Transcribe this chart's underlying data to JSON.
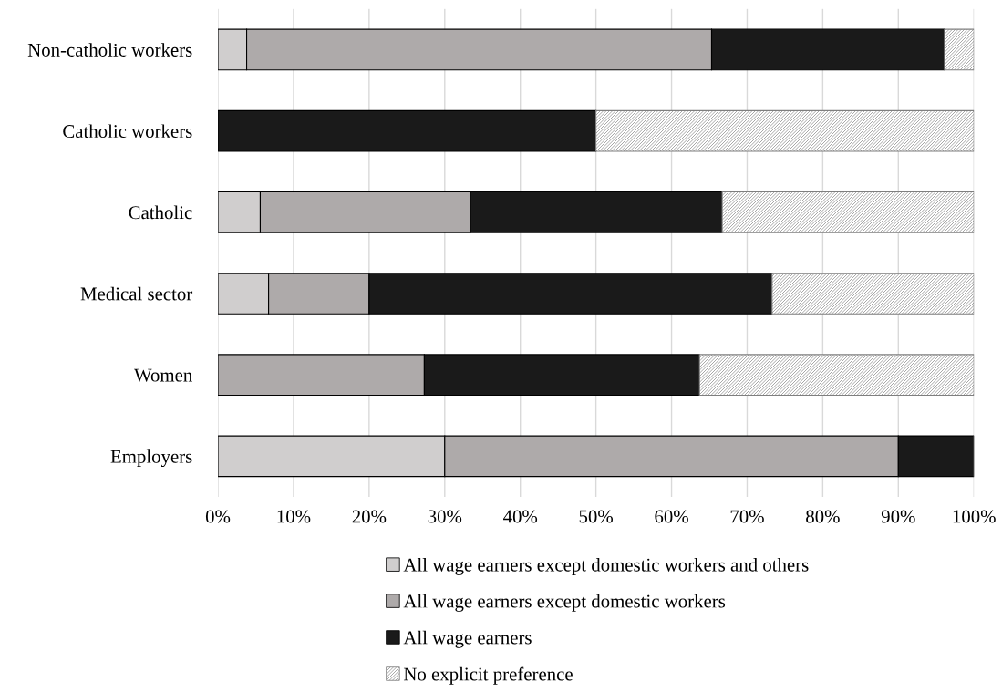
{
  "chart_data": {
    "type": "bar",
    "orientation": "horizontal",
    "stacked": true,
    "categories": [
      "Non-catholic workers",
      "Catholic workers",
      "Catholic",
      "Medical sector",
      "Women",
      "Employers"
    ],
    "series": [
      {
        "name": "All wage earners except domestic workers and others",
        "color": "#d0cece",
        "values": [
          3.8,
          0,
          5.6,
          6.7,
          0,
          30
        ]
      },
      {
        "name": "All wage earners except domestic workers",
        "color": "#aeaaaa",
        "values": [
          61.5,
          0,
          27.8,
          13.3,
          27.3,
          60
        ]
      },
      {
        "name": "All wage earners",
        "color": "#1a1a1a",
        "values": [
          30.8,
          50,
          33.3,
          53.3,
          36.4,
          10
        ]
      },
      {
        "name": "No explicit preference",
        "color": "#7f7f7f",
        "values": [
          3.9,
          50,
          33.3,
          26.7,
          36.3,
          0
        ]
      }
    ],
    "xlim": [
      0,
      100
    ],
    "xticks": [
      {
        "value": 0,
        "label": "0%"
      },
      {
        "value": 10,
        "label": "10%"
      },
      {
        "value": 20,
        "label": "20%"
      },
      {
        "value": 30,
        "label": "30%"
      },
      {
        "value": 40,
        "label": "40%"
      },
      {
        "value": 50,
        "label": "50%"
      },
      {
        "value": 60,
        "label": "60%"
      },
      {
        "value": 70,
        "label": "70%"
      },
      {
        "value": 80,
        "label": "80%"
      },
      {
        "value": 90,
        "label": "90%"
      },
      {
        "value": 100,
        "label": "100%"
      }
    ],
    "grid": "x",
    "legend": "bottom"
  }
}
